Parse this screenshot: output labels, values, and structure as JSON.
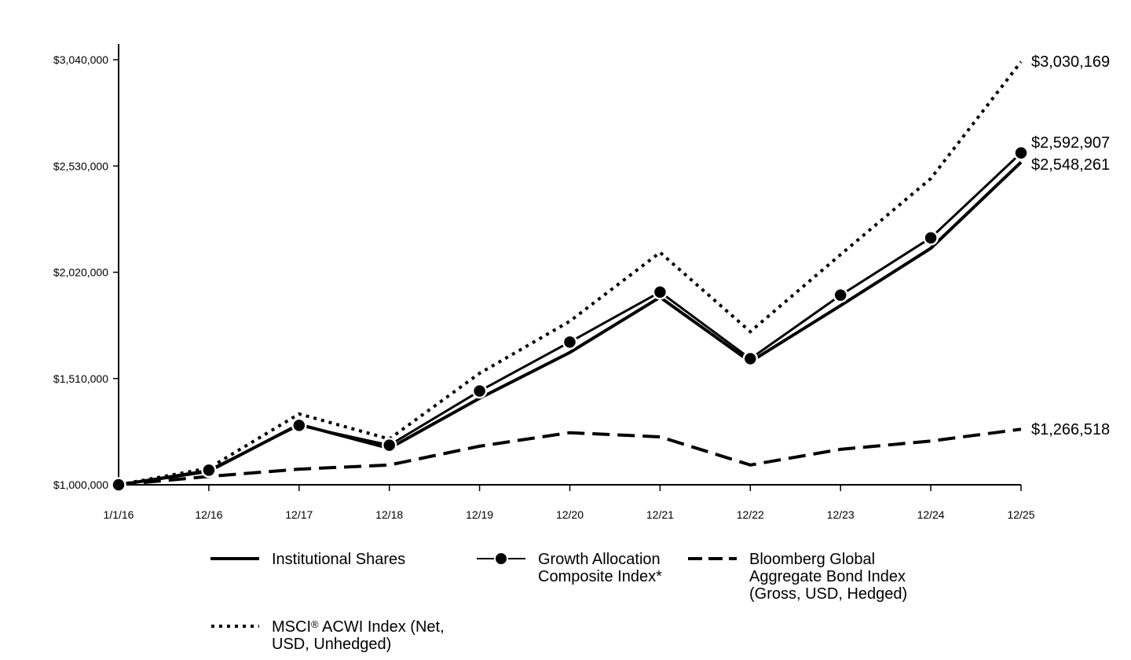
{
  "chart_data": {
    "type": "line",
    "x": [
      "1/1/16",
      "12/16",
      "12/17",
      "12/18",
      "12/19",
      "12/20",
      "12/21",
      "12/22",
      "12/23",
      "12/24",
      "12/25"
    ],
    "y_ticks": [
      "$1,000,000",
      "$1,510,000",
      "$2,020,000",
      "$2,530,000",
      "$3,040,000"
    ],
    "y_tick_values": [
      1000000,
      1510000,
      2020000,
      2530000,
      3040000
    ],
    "ylim": [
      1000000,
      3040000
    ],
    "grid": false,
    "legend_position": "bottom",
    "series": [
      {
        "name": "Institutional Shares",
        "style": "solid",
        "values": [
          1000000,
          1065000,
          1290000,
          1175000,
          1415000,
          1635000,
          1900000,
          1590000,
          1860000,
          2135000,
          2548261
        ],
        "end_label": "$2,548,261"
      },
      {
        "name": "Growth Allocation\nComposite Index*",
        "style": "solid-circle",
        "values": [
          1000000,
          1070000,
          1285000,
          1190000,
          1450000,
          1685000,
          1925000,
          1605000,
          1910000,
          2185000,
          2592907
        ],
        "end_label": "$2,592,907"
      },
      {
        "name": "Bloomberg Global\nAggregate Bond Index\n(Gross, USD, Hedged)",
        "style": "dashed",
        "values": [
          1000000,
          1040000,
          1075000,
          1095000,
          1185000,
          1250000,
          1230000,
          1095000,
          1170000,
          1210000,
          1266518
        ],
        "end_label": "$1,266,518"
      },
      {
        "name": "MSCI® ACWI Index (Net,\nUSD, Unhedged)",
        "style": "dotted",
        "values": [
          1000000,
          1080000,
          1340000,
          1220000,
          1535000,
          1785000,
          2115000,
          1735000,
          2105000,
          2470000,
          3030169
        ],
        "end_label": "$3,030,169"
      }
    ]
  }
}
